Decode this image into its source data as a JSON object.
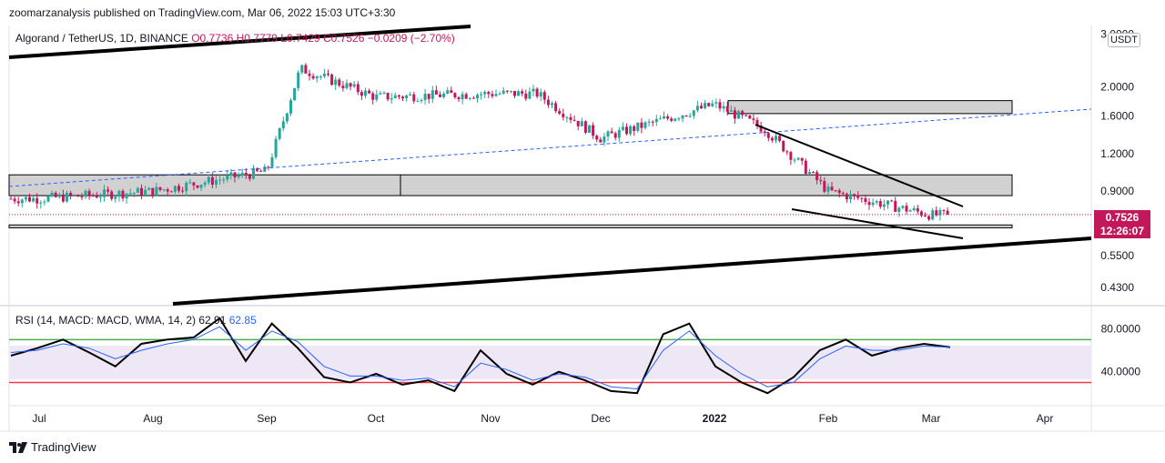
{
  "header": {
    "publisher_line": "zoomarzanalysis published on TradingView.com, Mar 06, 2022 15:03 UTC+3:30"
  },
  "legend": {
    "symbol": "Algorand / TetherUS, 1D, BINANCE",
    "ohlc": "O0.7736 H0.7779 L0.7429 C0.7526 −0.0209 (−2.70%)"
  },
  "rsi_legend": {
    "label": "RSI (14, MACD: MACD, WMA, 14, 2)",
    "value1": "62.91",
    "value2": "62.85"
  },
  "price_tag": {
    "price": "0.7526",
    "countdown": "12:26:07"
  },
  "unit": "USDT",
  "footer": {
    "brand": "TradingView"
  },
  "colors": {
    "up": "#26a69a",
    "down": "#c2185b",
    "rsi_line": "#000000",
    "rsi_signal": "#2962ff",
    "rsi_upper": "#4caf50",
    "rsi_lower": "#f23645",
    "zone": "#d1d1d1",
    "rsi_band": "#ede7f6"
  },
  "chart_data": [
    {
      "type": "candlestick",
      "title": "Algorand / TetherUS, 1D, BINANCE",
      "scale": "log",
      "ylim": [
        0.38,
        3.2
      ],
      "yticks": [
        "3.0000",
        "2.0000",
        "1.6000",
        "1.2000",
        "0.9000",
        "0.5500",
        "0.4300"
      ],
      "x_ticks": [
        "Jul",
        "Aug",
        "Sep",
        "Oct",
        "Nov",
        "Dec",
        "2022",
        "Feb",
        "Mar",
        "Apr"
      ],
      "x_range": [
        "Jun",
        "Apr"
      ],
      "last_close": 0.7526,
      "approx_monthly_path": [
        {
          "month": "Jul",
          "price": 0.85
        },
        {
          "month": "Aug",
          "price": 0.9
        },
        {
          "month": "Sep",
          "price": 1.05
        },
        {
          "month": "Sep-mid",
          "price": 2.3
        },
        {
          "month": "Oct",
          "price": 1.85
        },
        {
          "month": "Nov",
          "price": 1.9
        },
        {
          "month": "Nov-late",
          "price": 1.9
        },
        {
          "month": "Dec",
          "price": 1.35
        },
        {
          "month": "2022",
          "price": 1.75
        },
        {
          "month": "Jan-mid",
          "price": 1.45
        },
        {
          "month": "Feb",
          "price": 0.9
        },
        {
          "month": "Mar",
          "price": 0.75
        }
      ],
      "zones": [
        {
          "from": 0.87,
          "to": 1.02
        },
        {
          "from": 0.68,
          "to": 0.695
        },
        {
          "from": 1.63,
          "to": 1.8
        }
      ],
      "grid": false
    },
    {
      "type": "line",
      "title": "RSI (14, MACD: MACD, WMA, 14, 2)",
      "ylim": [
        10,
        100
      ],
      "yticks": [
        "80.0000",
        "40.0000"
      ],
      "levels": [
        70,
        30
      ],
      "series": [
        {
          "name": "RSI",
          "values": [
            55,
            62,
            70,
            58,
            45,
            66,
            70,
            72,
            90,
            50,
            85,
            62,
            35,
            30,
            38,
            28,
            32,
            22,
            60,
            38,
            28,
            40,
            32,
            22,
            20,
            75,
            85,
            45,
            30,
            20,
            35,
            60,
            70,
            55,
            62,
            66,
            62.91
          ]
        },
        {
          "name": "WMA",
          "values": [
            58,
            60,
            66,
            62,
            52,
            60,
            66,
            70,
            82,
            60,
            78,
            68,
            45,
            36,
            36,
            32,
            34,
            26,
            48,
            42,
            32,
            38,
            35,
            26,
            24,
            60,
            78,
            55,
            38,
            26,
            30,
            52,
            64,
            60,
            60,
            64,
            62.85
          ]
        }
      ]
    }
  ]
}
